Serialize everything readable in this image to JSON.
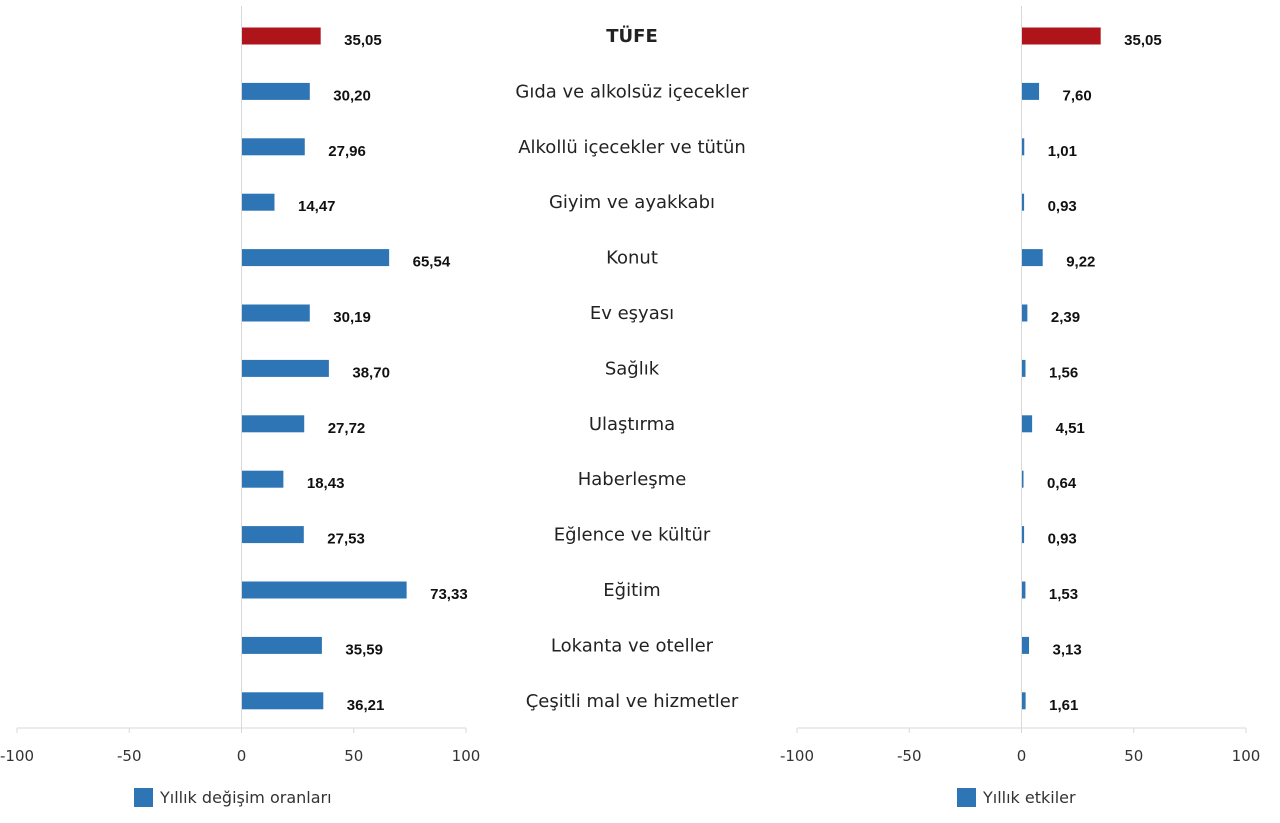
{
  "chart_data": {
    "type": "bar",
    "orientation": "horizontal",
    "categories": [
      "TÜFE",
      "Gıda ve alkolsüz içecekler",
      "Alkollü içecekler ve tütün",
      "Giyim ve ayakkabı",
      "Konut",
      "Ev eşyası",
      "Sağlık",
      "Ulaştırma",
      "Haberleşme",
      "Eğlence ve kültür",
      "Eğitim",
      "Lokanta ve oteller",
      "Çeşitli mal ve hizmetler"
    ],
    "highlight_category": "TÜFE",
    "colors": {
      "highlight": "#b0141b",
      "bar": "#2e75b6",
      "axis": "#d9d9d9"
    },
    "xlim": [
      -100,
      100
    ],
    "xticks": [
      "-100",
      "-50",
      "0",
      "50",
      "100"
    ],
    "grid": false,
    "series": [
      {
        "name": "Yıllık değişim oranları",
        "values": [
          35.05,
          30.2,
          27.96,
          14.47,
          65.54,
          30.19,
          38.7,
          27.72,
          18.43,
          27.53,
          73.33,
          35.59,
          36.21
        ],
        "value_labels": [
          "35,05",
          "30,20",
          "27,96",
          "14,47",
          "65,54",
          "30,19",
          "38,70",
          "27,72",
          "18,43",
          "27,53",
          "73,33",
          "35,59",
          "36,21"
        ]
      },
      {
        "name": "Yıllık etkiler",
        "values": [
          35.05,
          7.6,
          1.01,
          0.93,
          9.22,
          2.39,
          1.56,
          4.51,
          0.64,
          0.93,
          1.53,
          3.13,
          1.61
        ],
        "value_labels": [
          "35,05",
          "7,60",
          "1,01",
          "0,93",
          "9,22",
          "2,39",
          "1,56",
          "4,51",
          "0,64",
          "0,93",
          "1,53",
          "3,13",
          "1,61"
        ]
      }
    ]
  }
}
